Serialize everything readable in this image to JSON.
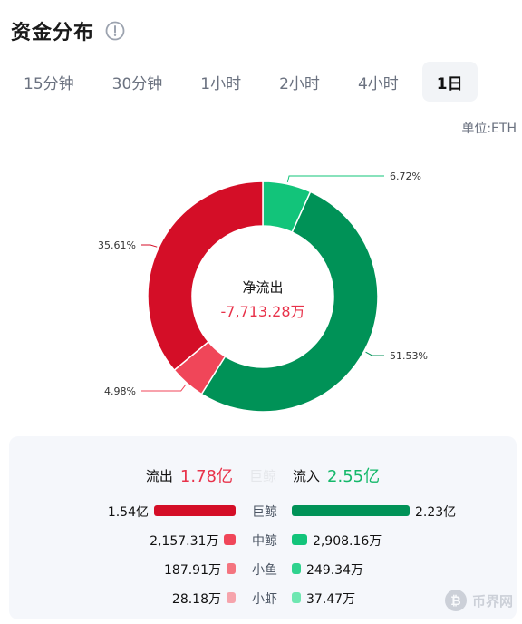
{
  "header": {
    "title": "资金分布",
    "info_icon": "info-circle-icon"
  },
  "tabs": [
    {
      "label": "15分钟",
      "active": false
    },
    {
      "label": "30分钟",
      "active": false
    },
    {
      "label": "1小时",
      "active": false
    },
    {
      "label": "2小时",
      "active": false
    },
    {
      "label": "4小时",
      "active": false
    },
    {
      "label": "1日",
      "active": true
    }
  ],
  "unit": "单位:ETH",
  "donut": {
    "center_label": "净流出",
    "center_value": "-7,713.28万"
  },
  "chart_data": {
    "type": "pie",
    "slices": [
      {
        "label": "6.72%",
        "value": 6.72,
        "color": "#12c47a"
      },
      {
        "label": "51.53%",
        "value": 51.53,
        "color": "#009257"
      },
      {
        "label": "4.98%",
        "value": 4.98,
        "color": "#f04659"
      },
      {
        "label": "35.61%",
        "value": 35.61,
        "color": "#d40e27"
      }
    ]
  },
  "summary": {
    "outflow_label": "流出",
    "outflow_value": "1.78亿",
    "middle_label": "巨鲸",
    "inflow_label": "流入",
    "inflow_value": "2.55亿"
  },
  "rows": [
    {
      "category": "巨鲸",
      "out_value": "1.54亿",
      "out_num": 15400,
      "out_color": "#d40e27",
      "in_value": "2.23亿",
      "in_num": 22300,
      "in_color": "#009257"
    },
    {
      "category": "中鲸",
      "out_value": "2,157.31万",
      "out_num": 2157.31,
      "out_color": "#f04659",
      "in_value": "2,908.16万",
      "in_num": 2908.16,
      "in_color": "#12c47a"
    },
    {
      "category": "小鱼",
      "out_value": "187.91万",
      "out_num": 187.91,
      "out_color": "#f4747f",
      "in_value": "249.34万",
      "in_num": 249.34,
      "in_color": "#2fd28e"
    },
    {
      "category": "小虾",
      "out_value": "28.18万",
      "out_num": 28.18,
      "out_color": "#f6a4ac",
      "in_value": "37.47万",
      "in_num": 37.47,
      "in_color": "#6ee7b1"
    }
  ],
  "watermark": {
    "text": "币界网",
    "icon": "bitcoin-coin-icon"
  }
}
